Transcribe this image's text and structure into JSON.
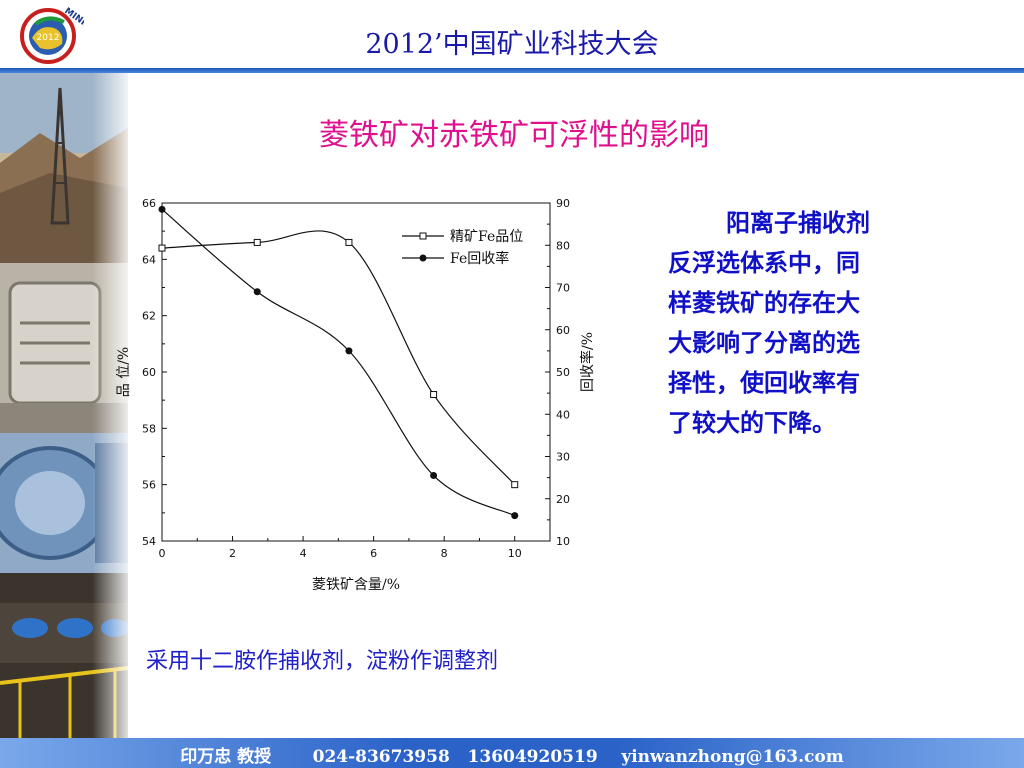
{
  "header": {
    "conference_title": "2012’中国矿业科技大会",
    "logo_text": "MINING",
    "logo_year": "2012"
  },
  "slide": {
    "title": "菱铁矿对赤铁矿可浮性的影响",
    "note_lines": [
      "阳离子捕收剂",
      "反浮选体系中，同",
      "样菱铁矿的存在大",
      "大影响了分离的选",
      "择性，使回收率有",
      "了较大的下降。"
    ],
    "reagent_note": "采用十二胺作捕收剂，淀粉作调整剂"
  },
  "chart_data": {
    "type": "line",
    "xlabel": "菱铁矿含量/%",
    "ylabel": "品  位/%",
    "y2label": "回收率/%",
    "xlim": [
      0,
      11
    ],
    "ylim": [
      54,
      66
    ],
    "y2lim": [
      10,
      90
    ],
    "x_ticks": [
      0,
      2,
      4,
      6,
      8,
      10
    ],
    "y_ticks": [
      54,
      56,
      58,
      60,
      62,
      64,
      66
    ],
    "y2_ticks": [
      10,
      20,
      30,
      40,
      50,
      60,
      70,
      80,
      90
    ],
    "grid": false,
    "legend_position": "top-right",
    "series": [
      {
        "name": "精矿Fe品位",
        "axis": "left",
        "marker": "open-square",
        "x": [
          0,
          2.7,
          5.3,
          7.7,
          10
        ],
        "y": [
          64.4,
          64.6,
          64.6,
          59.2,
          56.0
        ]
      },
      {
        "name": "Fe回收率",
        "axis": "right",
        "marker": "filled-circle",
        "x": [
          0,
          2.7,
          5.3,
          7.7,
          10
        ],
        "y": [
          88.5,
          69.0,
          55.0,
          25.5,
          16.0
        ]
      }
    ]
  },
  "footer": {
    "text": "印万忠 教授       024-83673958   13604920519    yinwanzhong@163.com"
  },
  "colors": {
    "title_magenta": "#e0108e",
    "header_blue": "#1a1aa8",
    "note_blue": "#1010c8",
    "footer_blue": "#2a62c8"
  }
}
